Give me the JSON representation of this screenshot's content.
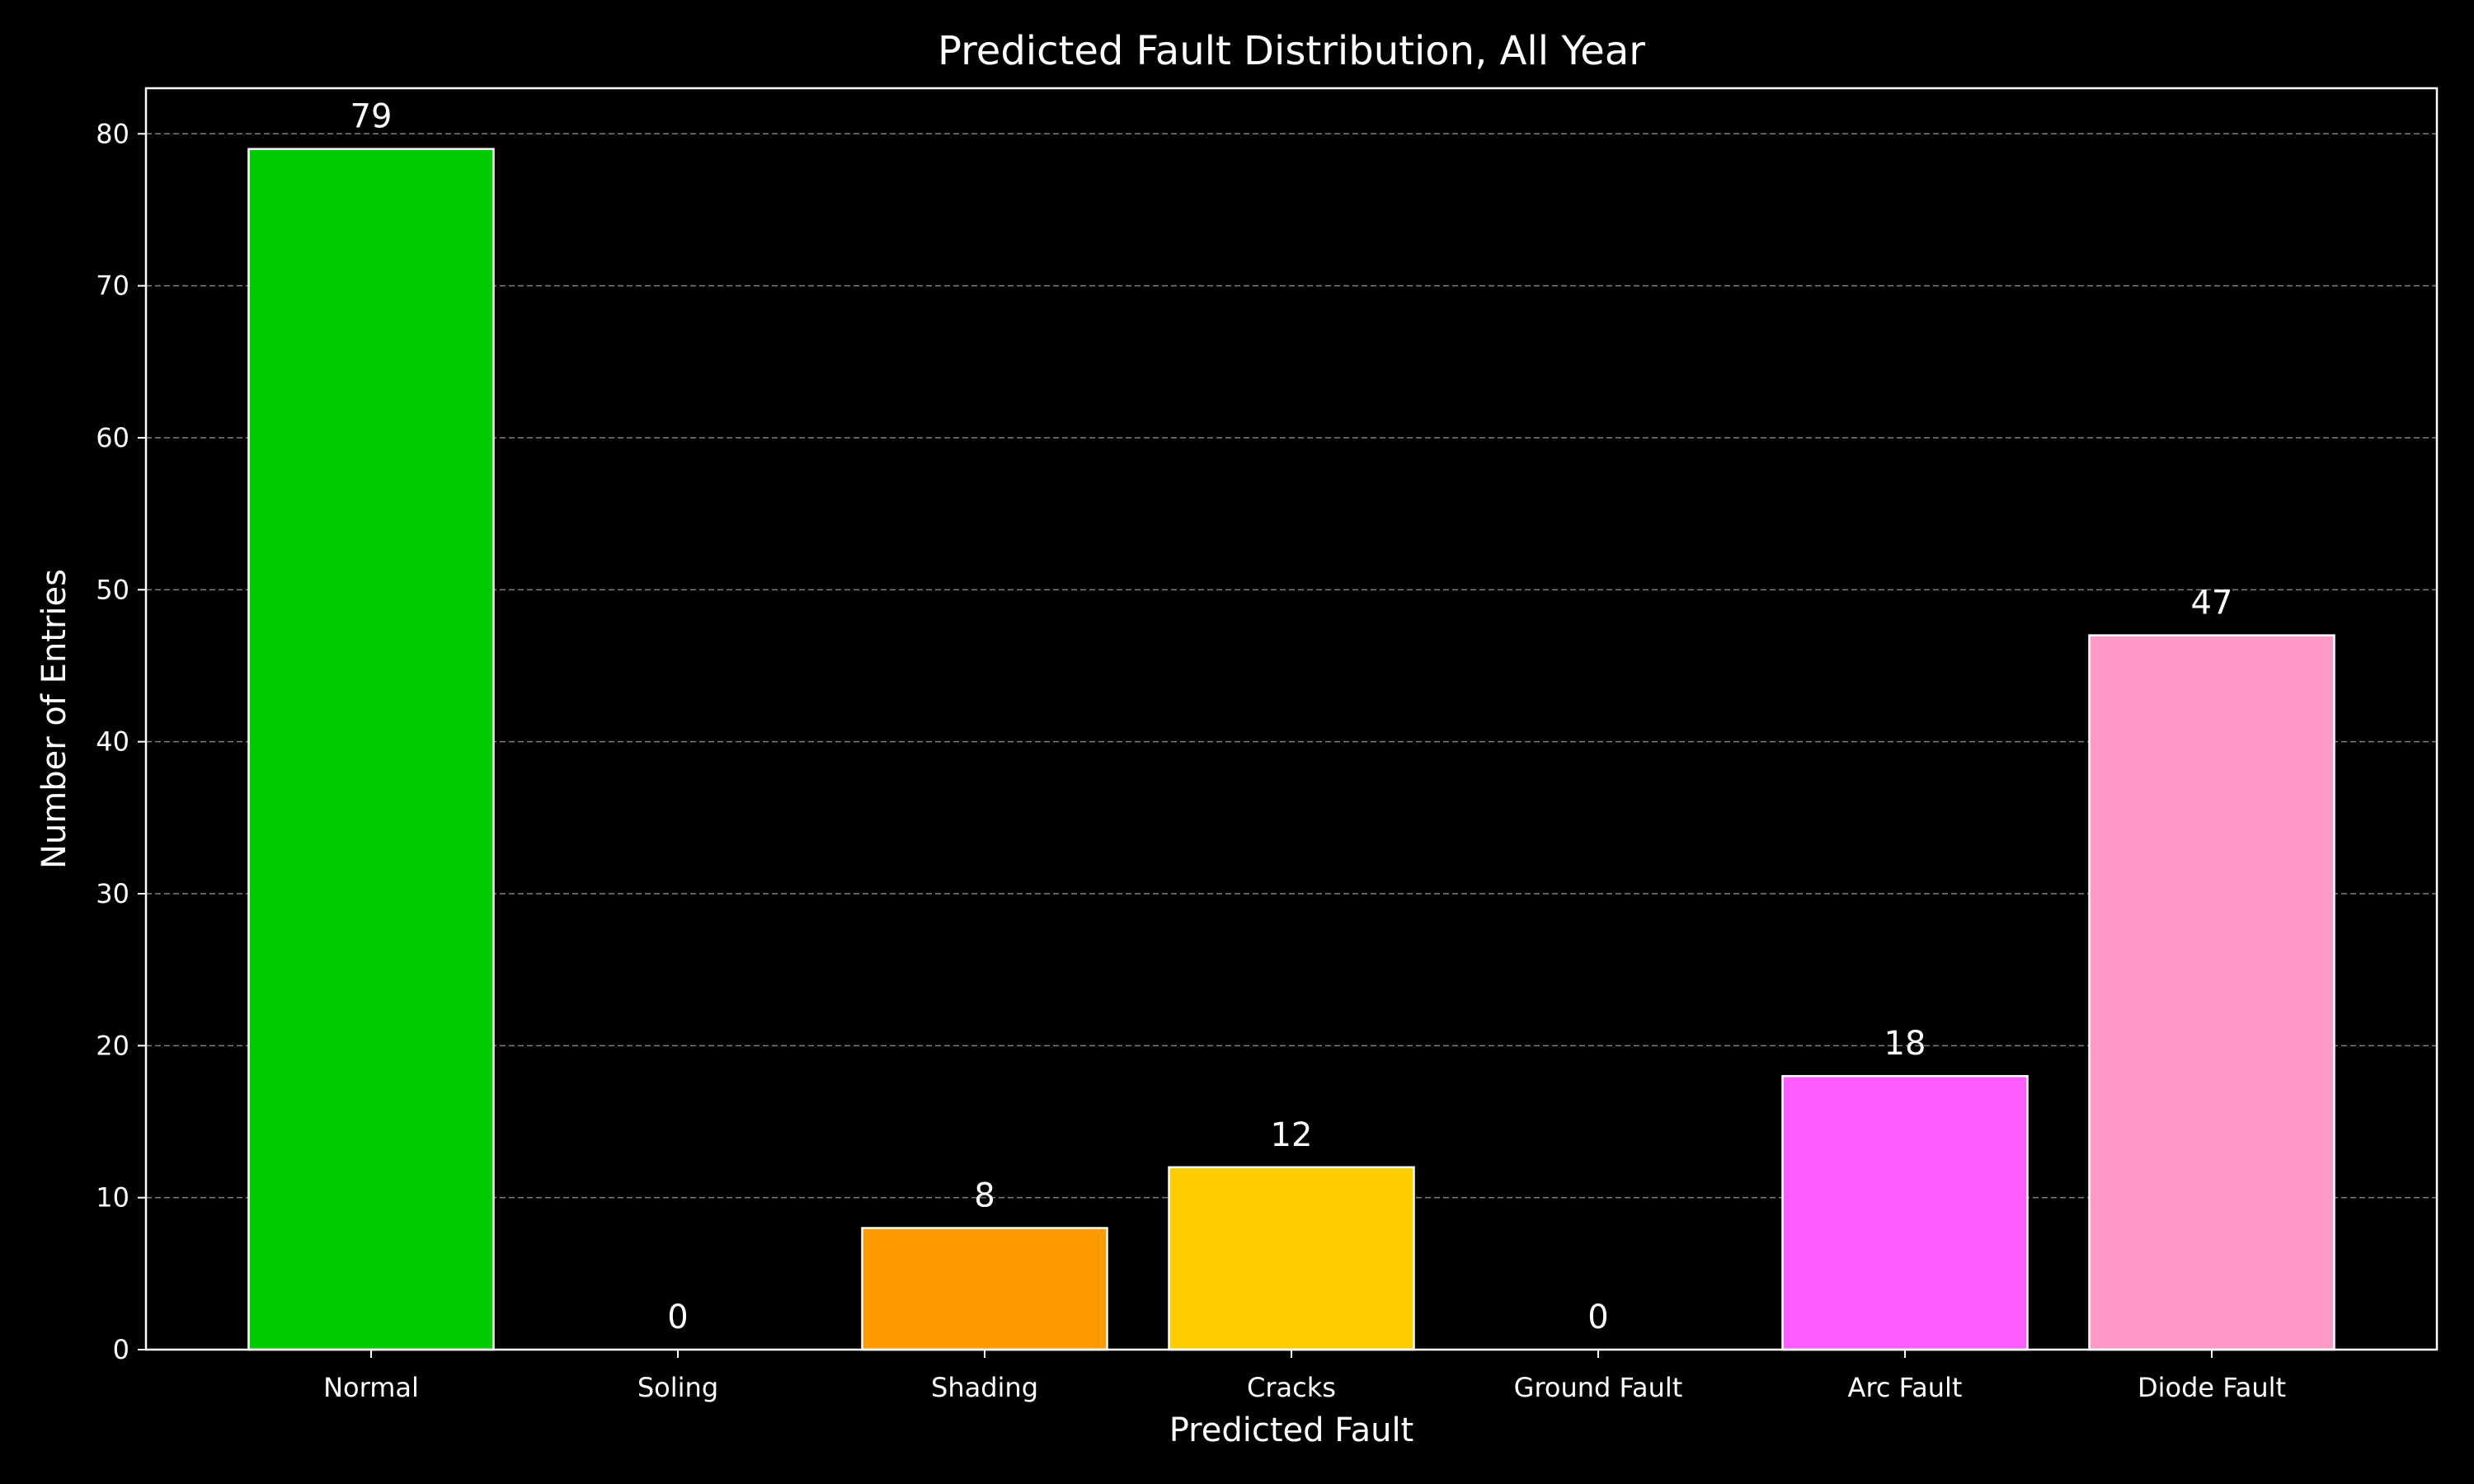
{
  "chart_data": {
    "type": "bar",
    "title": "Predicted Fault Distribution, All Year",
    "xlabel": "Predicted Fault",
    "ylabel": "Number of Entries",
    "categories": [
      "Normal",
      "Soling",
      "Shading",
      "Cracks",
      "Ground Fault",
      "Arc Fault",
      "Diode Fault"
    ],
    "values": [
      79,
      0,
      8,
      12,
      0,
      18,
      47
    ],
    "colors": [
      "#00cc00",
      "#00cc00",
      "#ff9900",
      "#ffcc00",
      "#ff0000",
      "#ff5cff",
      "#ff99c8"
    ],
    "ylim": [
      0,
      83
    ],
    "yticks": [
      0,
      10,
      20,
      30,
      40,
      50,
      60,
      70,
      80
    ],
    "grid": true,
    "theme": {
      "background": "#000000",
      "foreground": "#ffffff",
      "grid": "#808080"
    }
  }
}
